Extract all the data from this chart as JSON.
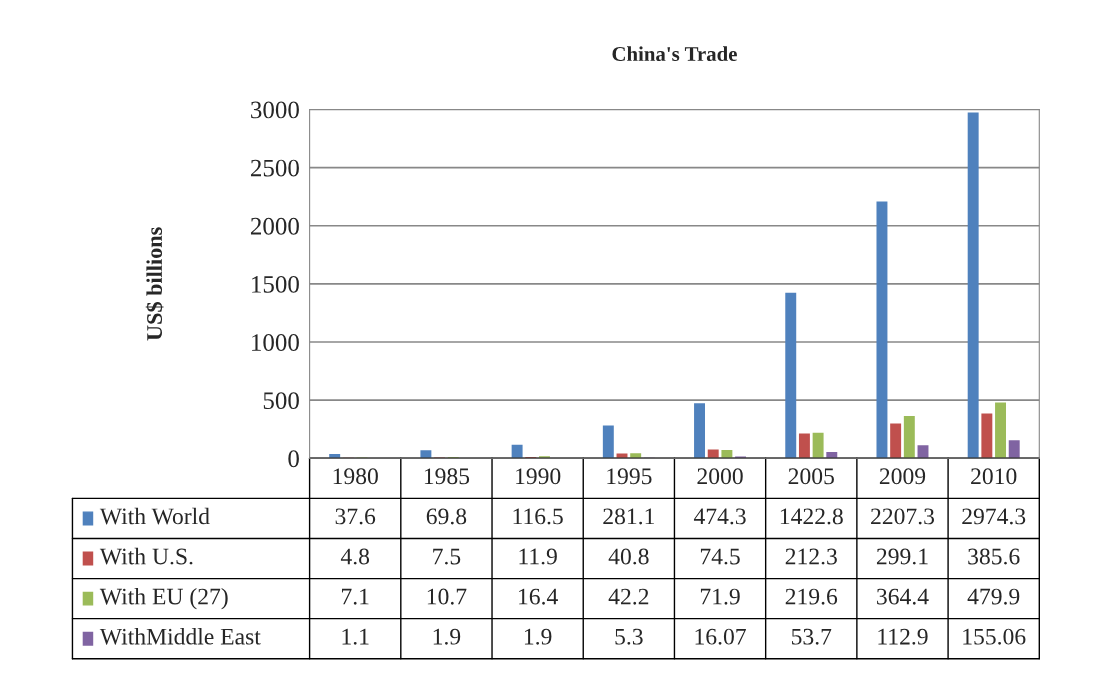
{
  "chart_data": {
    "type": "bar",
    "title": "China's Trade",
    "ylabel": "US$ billions",
    "categories": [
      "1980",
      "1985",
      "1990",
      "1995",
      "2000",
      "2005",
      "2009",
      "2010"
    ],
    "series": [
      {
        "name": "With World",
        "color": "#4f81bd",
        "values": [
          37.6,
          69.8,
          116.5,
          281.1,
          474.3,
          1422.8,
          2207.3,
          2974.3
        ]
      },
      {
        "name": "With U.S.",
        "color": "#c0504d",
        "values": [
          4.8,
          7.5,
          11.9,
          40.8,
          74.5,
          212.3,
          299.1,
          385.6
        ]
      },
      {
        "name": "With EU (27)",
        "color": "#9bbb59",
        "values": [
          7.1,
          10.7,
          16.4,
          42.2,
          71.9,
          219.6,
          364.4,
          479.9
        ]
      },
      {
        "name": "WithMiddle East",
        "color": "#8064a2",
        "values": [
          1.1,
          1.9,
          1.9,
          5.3,
          16.07,
          53.7,
          112.9,
          155.06
        ]
      }
    ],
    "ylim": [
      0,
      3000
    ],
    "yticks": [
      0,
      500,
      1000,
      1500,
      2000,
      2500,
      3000
    ],
    "grid": "y",
    "legend": "bottom",
    "data_labels": true
  }
}
